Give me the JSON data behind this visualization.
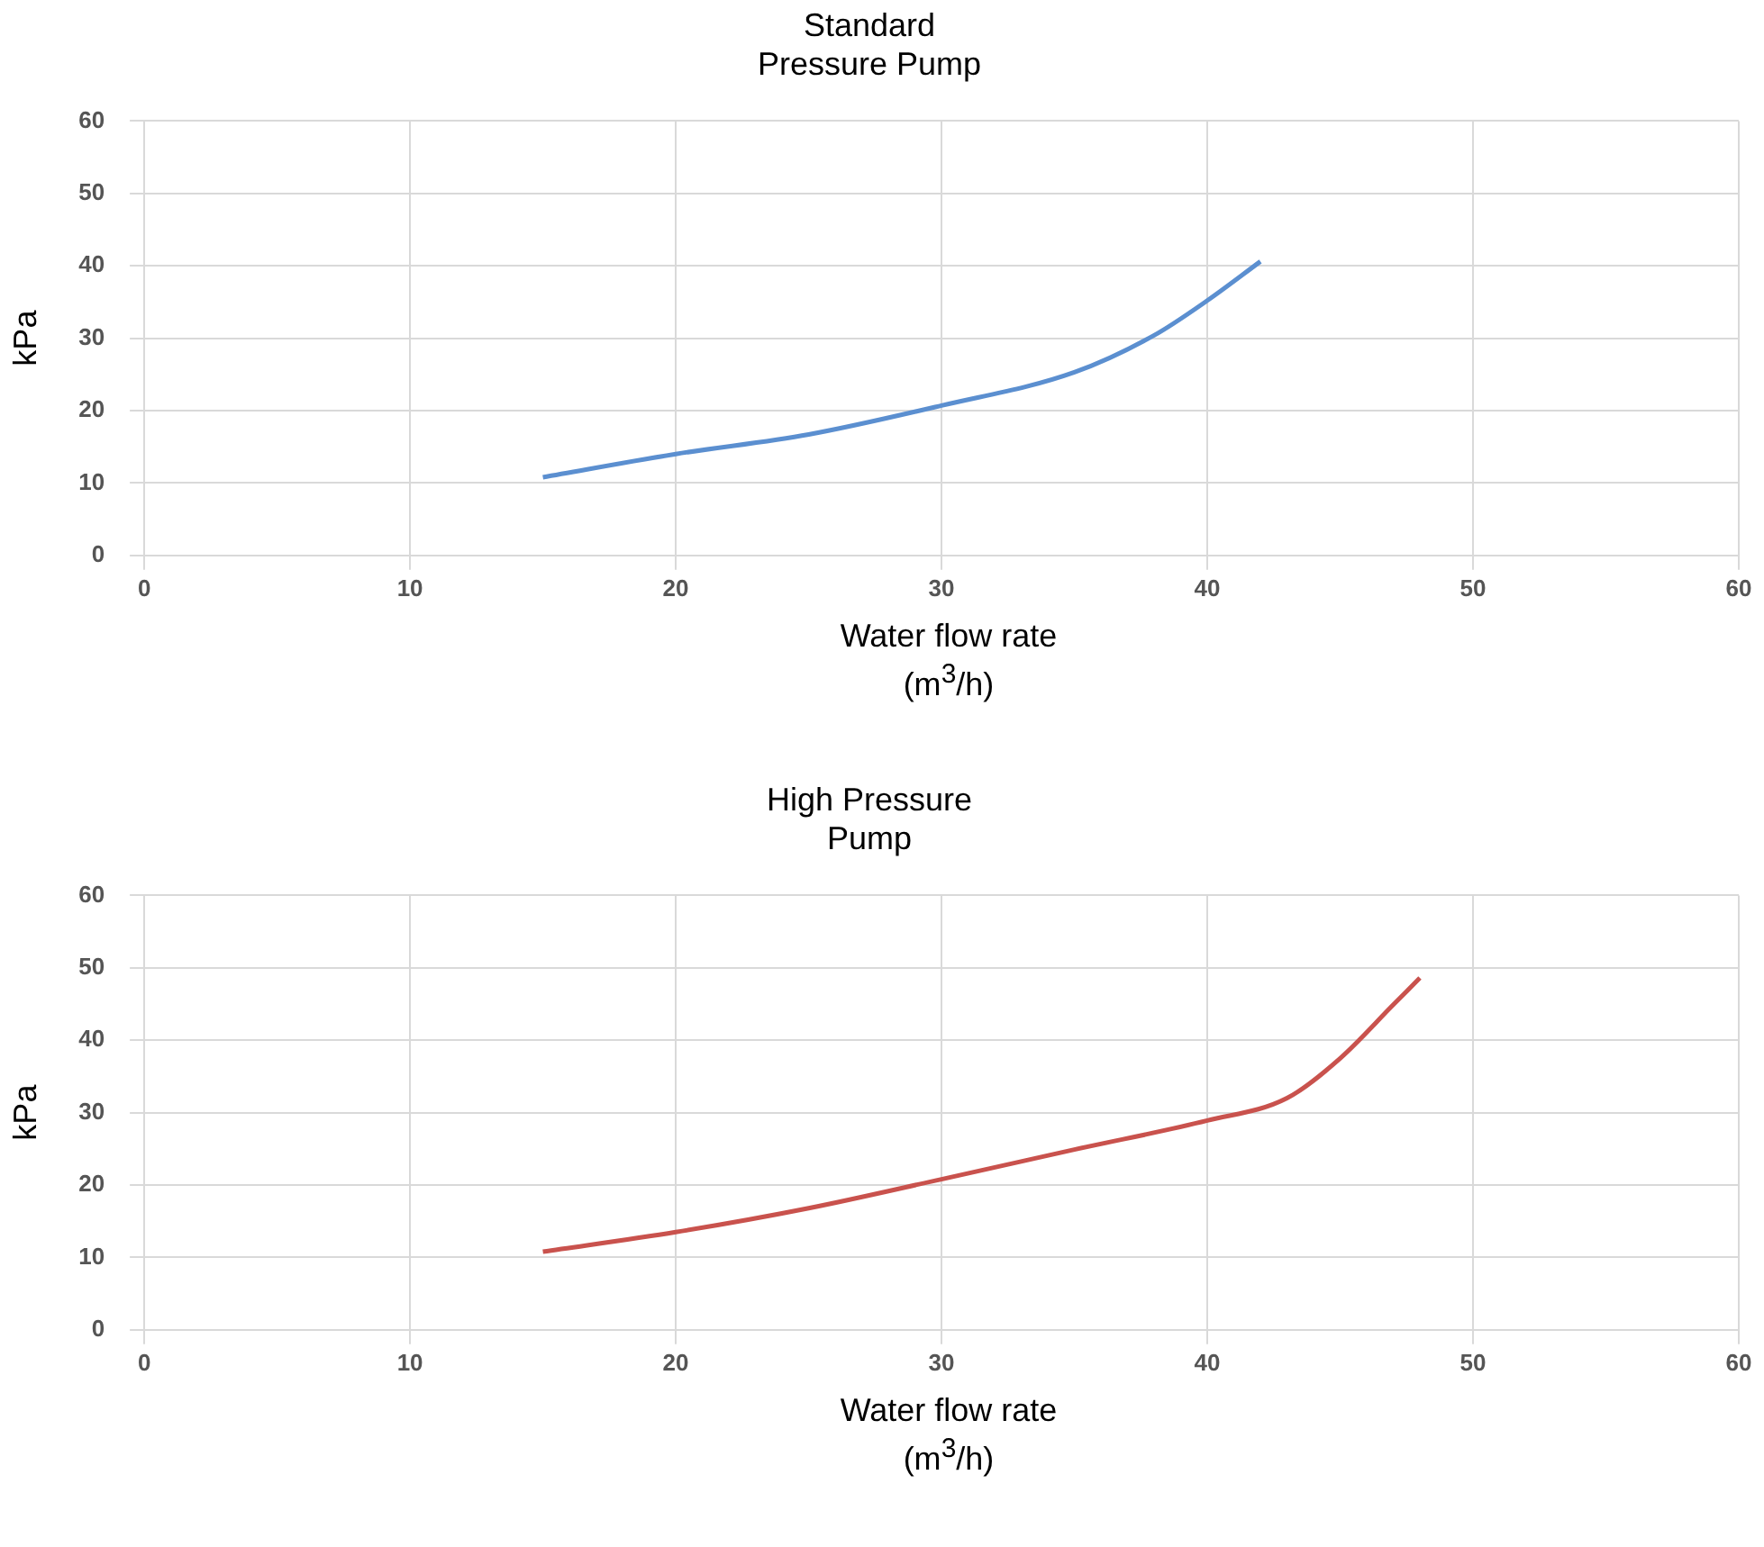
{
  "chart_data": [
    {
      "type": "line",
      "title": "Standard\nPressure Pump",
      "xlabel": "Water flow rate\n(m$^{3}$/h)",
      "ylabel": "kPa",
      "xlim": [
        0,
        60
      ],
      "xticks": [
        0,
        10,
        20,
        30,
        40,
        50,
        60
      ],
      "ylim": [
        0,
        60
      ],
      "yticks": [
        0,
        10,
        20,
        30,
        40,
        50,
        60
      ],
      "grid": true,
      "legend": false,
      "marker": "none",
      "line_style": "solid",
      "series": [
        {
          "color": "#5b8fd0",
          "x": [
            15,
            20,
            25,
            30,
            35,
            38,
            40,
            42
          ],
          "values": [
            10.8,
            14,
            16.7,
            20.7,
            25.3,
            30.4,
            35.2,
            40.6
          ]
        }
      ]
    },
    {
      "type": "line",
      "title": "High Pressure\nPump",
      "xlabel": "Water flow rate\n(m$^{3}$/h)",
      "ylabel": "kPa",
      "xlim": [
        0,
        60
      ],
      "xticks": [
        0,
        10,
        20,
        30,
        40,
        50,
        60
      ],
      "ylim": [
        0,
        60
      ],
      "yticks": [
        0,
        10,
        20,
        30,
        40,
        50,
        60
      ],
      "grid": true,
      "legend": false,
      "marker": "none",
      "line_style": "solid",
      "series": [
        {
          "color": "#c9524d",
          "x": [
            15,
            20,
            25,
            30,
            35,
            40,
            43,
            45,
            47,
            48
          ],
          "values": [
            10.8,
            13.5,
            16.8,
            20.8,
            24.9,
            28.9,
            32,
            37.5,
            44.9,
            48.6
          ]
        }
      ]
    }
  ]
}
